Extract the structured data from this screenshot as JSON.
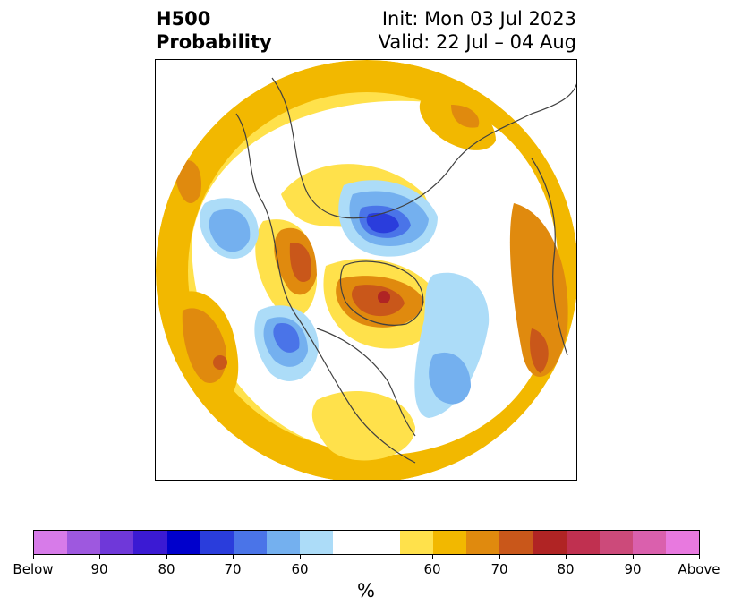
{
  "header": {
    "title_line1": "H500",
    "title_line2": "Probability",
    "init_text": "Init: Mon 03 Jul 2023",
    "valid_text": "Valid: 22 Jul – 04 Aug"
  },
  "map": {
    "projection": "north-polar-stereographic",
    "coastline_color": "#404040"
  },
  "colorbar": {
    "unit": "%",
    "colors": [
      "#d77be9",
      "#9e58df",
      "#6f38d9",
      "#3b1ad3",
      "#0000cc",
      "#2a3ddc",
      "#4a74e8",
      "#74b0ef",
      "#acdcf8",
      "#ffffff",
      "#ffffff",
      "#ffe14b",
      "#f2b800",
      "#e08a0e",
      "#c9571a",
      "#b02424",
      "#c03050",
      "#cc4a7a",
      "#da60ad",
      "#e879df"
    ],
    "tick_labels": [
      "Below",
      "90",
      "80",
      "70",
      "60",
      "60",
      "70",
      "80",
      "90",
      "Above"
    ]
  }
}
